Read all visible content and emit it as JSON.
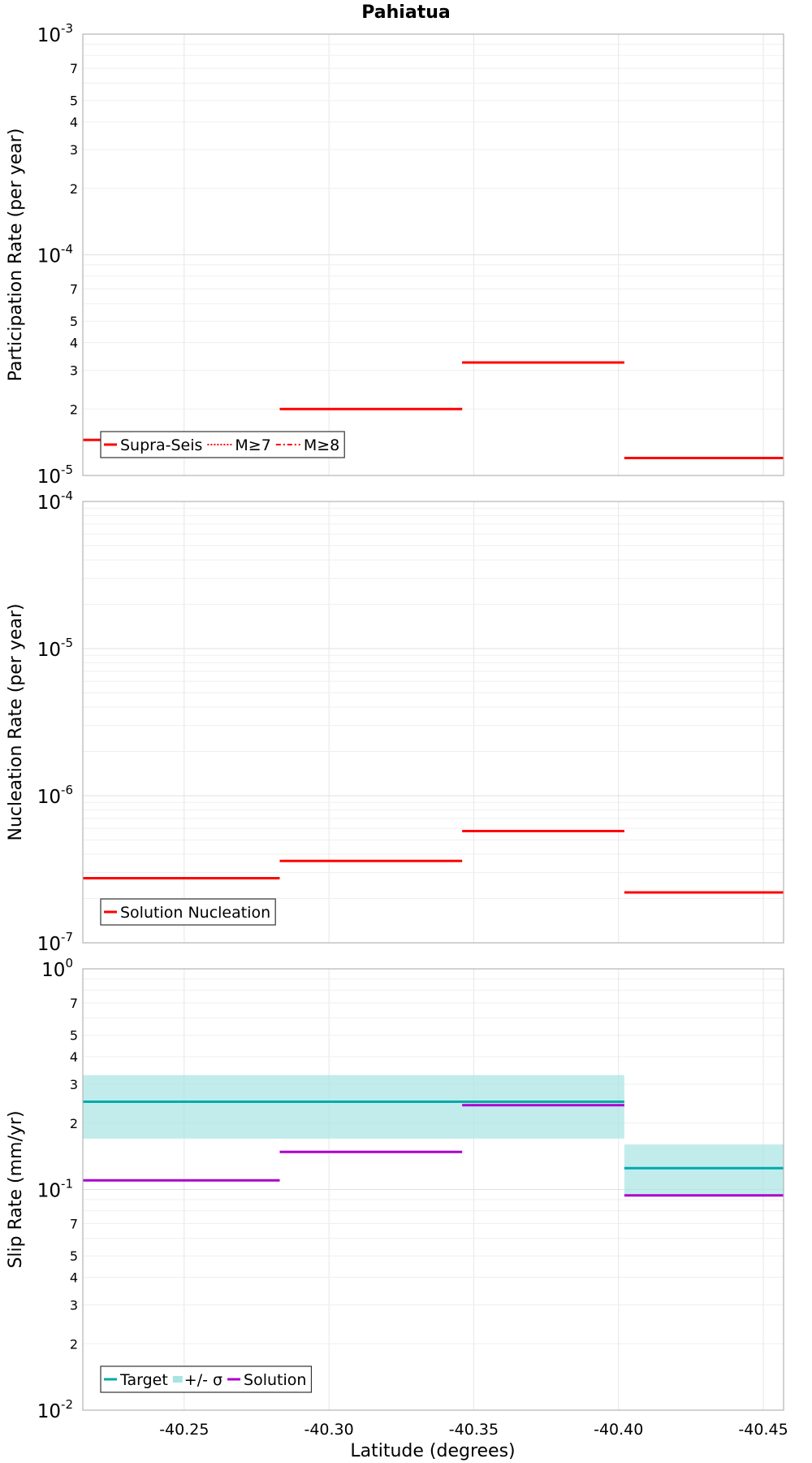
{
  "chart_data": [
    {
      "type": "line",
      "title": "Pahiatua",
      "ylabel": "Participation Rate (per year)",
      "xlabel": "",
      "yscale": "log",
      "ylim": [
        1e-05,
        0.001
      ],
      "xlim": [
        -40.215,
        -40.457
      ],
      "x_ticks": [
        "-40.25",
        "-40.30",
        "-40.35",
        "-40.40",
        "-40.45"
      ],
      "y_major_ticks": [
        {
          "base": "10",
          "exp": "-3"
        },
        {
          "base": "10",
          "exp": "-4"
        },
        {
          "base": "10",
          "exp": "-5"
        }
      ],
      "y_minor_ticks": [
        "2",
        "3",
        "4",
        "5",
        "7"
      ],
      "series": [
        {
          "name": "Supra-Seis",
          "color": "#ff0000",
          "style": "solid",
          "segments": [
            {
              "x0": -40.215,
              "x1": -40.283,
              "y": 1.45e-05
            },
            {
              "x0": -40.283,
              "x1": -40.346,
              "y": 2e-05
            },
            {
              "x0": -40.346,
              "x1": -40.402,
              "y": 3.25e-05
            },
            {
              "x0": -40.402,
              "x1": -40.457,
              "y": 1.2e-05
            }
          ]
        },
        {
          "name": "M≥7",
          "color": "#ff0000",
          "style": "dotted",
          "segments": [
            {
              "x0": -40.215,
              "x1": -40.283,
              "y": 1.45e-05
            },
            {
              "x0": -40.283,
              "x1": -40.346,
              "y": 2e-05
            },
            {
              "x0": -40.346,
              "x1": -40.402,
              "y": 3.25e-05
            },
            {
              "x0": -40.402,
              "x1": -40.457,
              "y": 1.2e-05
            }
          ]
        },
        {
          "name": "M≥8",
          "color": "#ff0000",
          "style": "dashdot",
          "segments": []
        }
      ],
      "legend": [
        "Supra-Seis",
        "M≥7",
        "M≥8"
      ],
      "legend_position": "bottom-left"
    },
    {
      "type": "line",
      "title": "",
      "ylabel": "Nucleation Rate (per year)",
      "xlabel": "",
      "yscale": "log",
      "ylim": [
        1e-07,
        0.0001
      ],
      "xlim": [
        -40.215,
        -40.457
      ],
      "x_ticks": [
        "-40.25",
        "-40.30",
        "-40.35",
        "-40.40",
        "-40.45"
      ],
      "y_major_ticks": [
        {
          "base": "10",
          "exp": "-4"
        },
        {
          "base": "10",
          "exp": "-5"
        },
        {
          "base": "10",
          "exp": "-6"
        },
        {
          "base": "10",
          "exp": "-7"
        }
      ],
      "y_minor_ticks": [],
      "series": [
        {
          "name": "Solution Nucleation",
          "color": "#ff0000",
          "style": "solid",
          "segments": [
            {
              "x0": -40.215,
              "x1": -40.283,
              "y": 2.75e-07
            },
            {
              "x0": -40.283,
              "x1": -40.346,
              "y": 3.6e-07
            },
            {
              "x0": -40.346,
              "x1": -40.402,
              "y": 5.75e-07
            },
            {
              "x0": -40.402,
              "x1": -40.457,
              "y": 2.2e-07
            }
          ]
        }
      ],
      "legend": [
        "Solution Nucleation"
      ],
      "legend_position": "bottom-left"
    },
    {
      "type": "line",
      "title": "",
      "ylabel": "Slip Rate (mm/yr)",
      "xlabel": "Latitude (degrees)",
      "yscale": "log",
      "ylim": [
        0.01,
        1
      ],
      "xlim": [
        -40.215,
        -40.457
      ],
      "x_ticks": [
        "-40.25",
        "-40.30",
        "-40.35",
        "-40.40",
        "-40.45"
      ],
      "y_major_ticks": [
        {
          "base": "10",
          "exp": "0"
        },
        {
          "base": "10",
          "exp": "-1"
        },
        {
          "base": "10",
          "exp": "-2"
        }
      ],
      "y_minor_ticks": [
        "2",
        "3",
        "4",
        "5",
        "7"
      ],
      "series": [
        {
          "name": "Target",
          "color": "#00aaaa",
          "style": "solid",
          "segments": [
            {
              "x0": -40.215,
              "x1": -40.402,
              "y": 0.25
            },
            {
              "x0": -40.402,
              "x1": -40.457,
              "y": 0.125
            }
          ]
        },
        {
          "name": "+/- σ",
          "color": "#a8e4e4",
          "style": "band",
          "bands": [
            {
              "x0": -40.215,
              "x1": -40.402,
              "low": 0.17,
              "high": 0.33
            },
            {
              "x0": -40.402,
              "x1": -40.457,
              "low": 0.095,
              "high": 0.16
            }
          ]
        },
        {
          "name": "Solution",
          "color": "#aa00cc",
          "style": "solid",
          "segments": [
            {
              "x0": -40.215,
              "x1": -40.283,
              "y": 0.11
            },
            {
              "x0": -40.283,
              "x1": -40.346,
              "y": 0.148
            },
            {
              "x0": -40.346,
              "x1": -40.402,
              "y": 0.241
            },
            {
              "x0": -40.402,
              "x1": -40.457,
              "y": 0.094
            }
          ]
        }
      ],
      "legend": [
        "Target",
        "+/- σ",
        "Solution"
      ],
      "legend_position": "bottom-left"
    }
  ]
}
